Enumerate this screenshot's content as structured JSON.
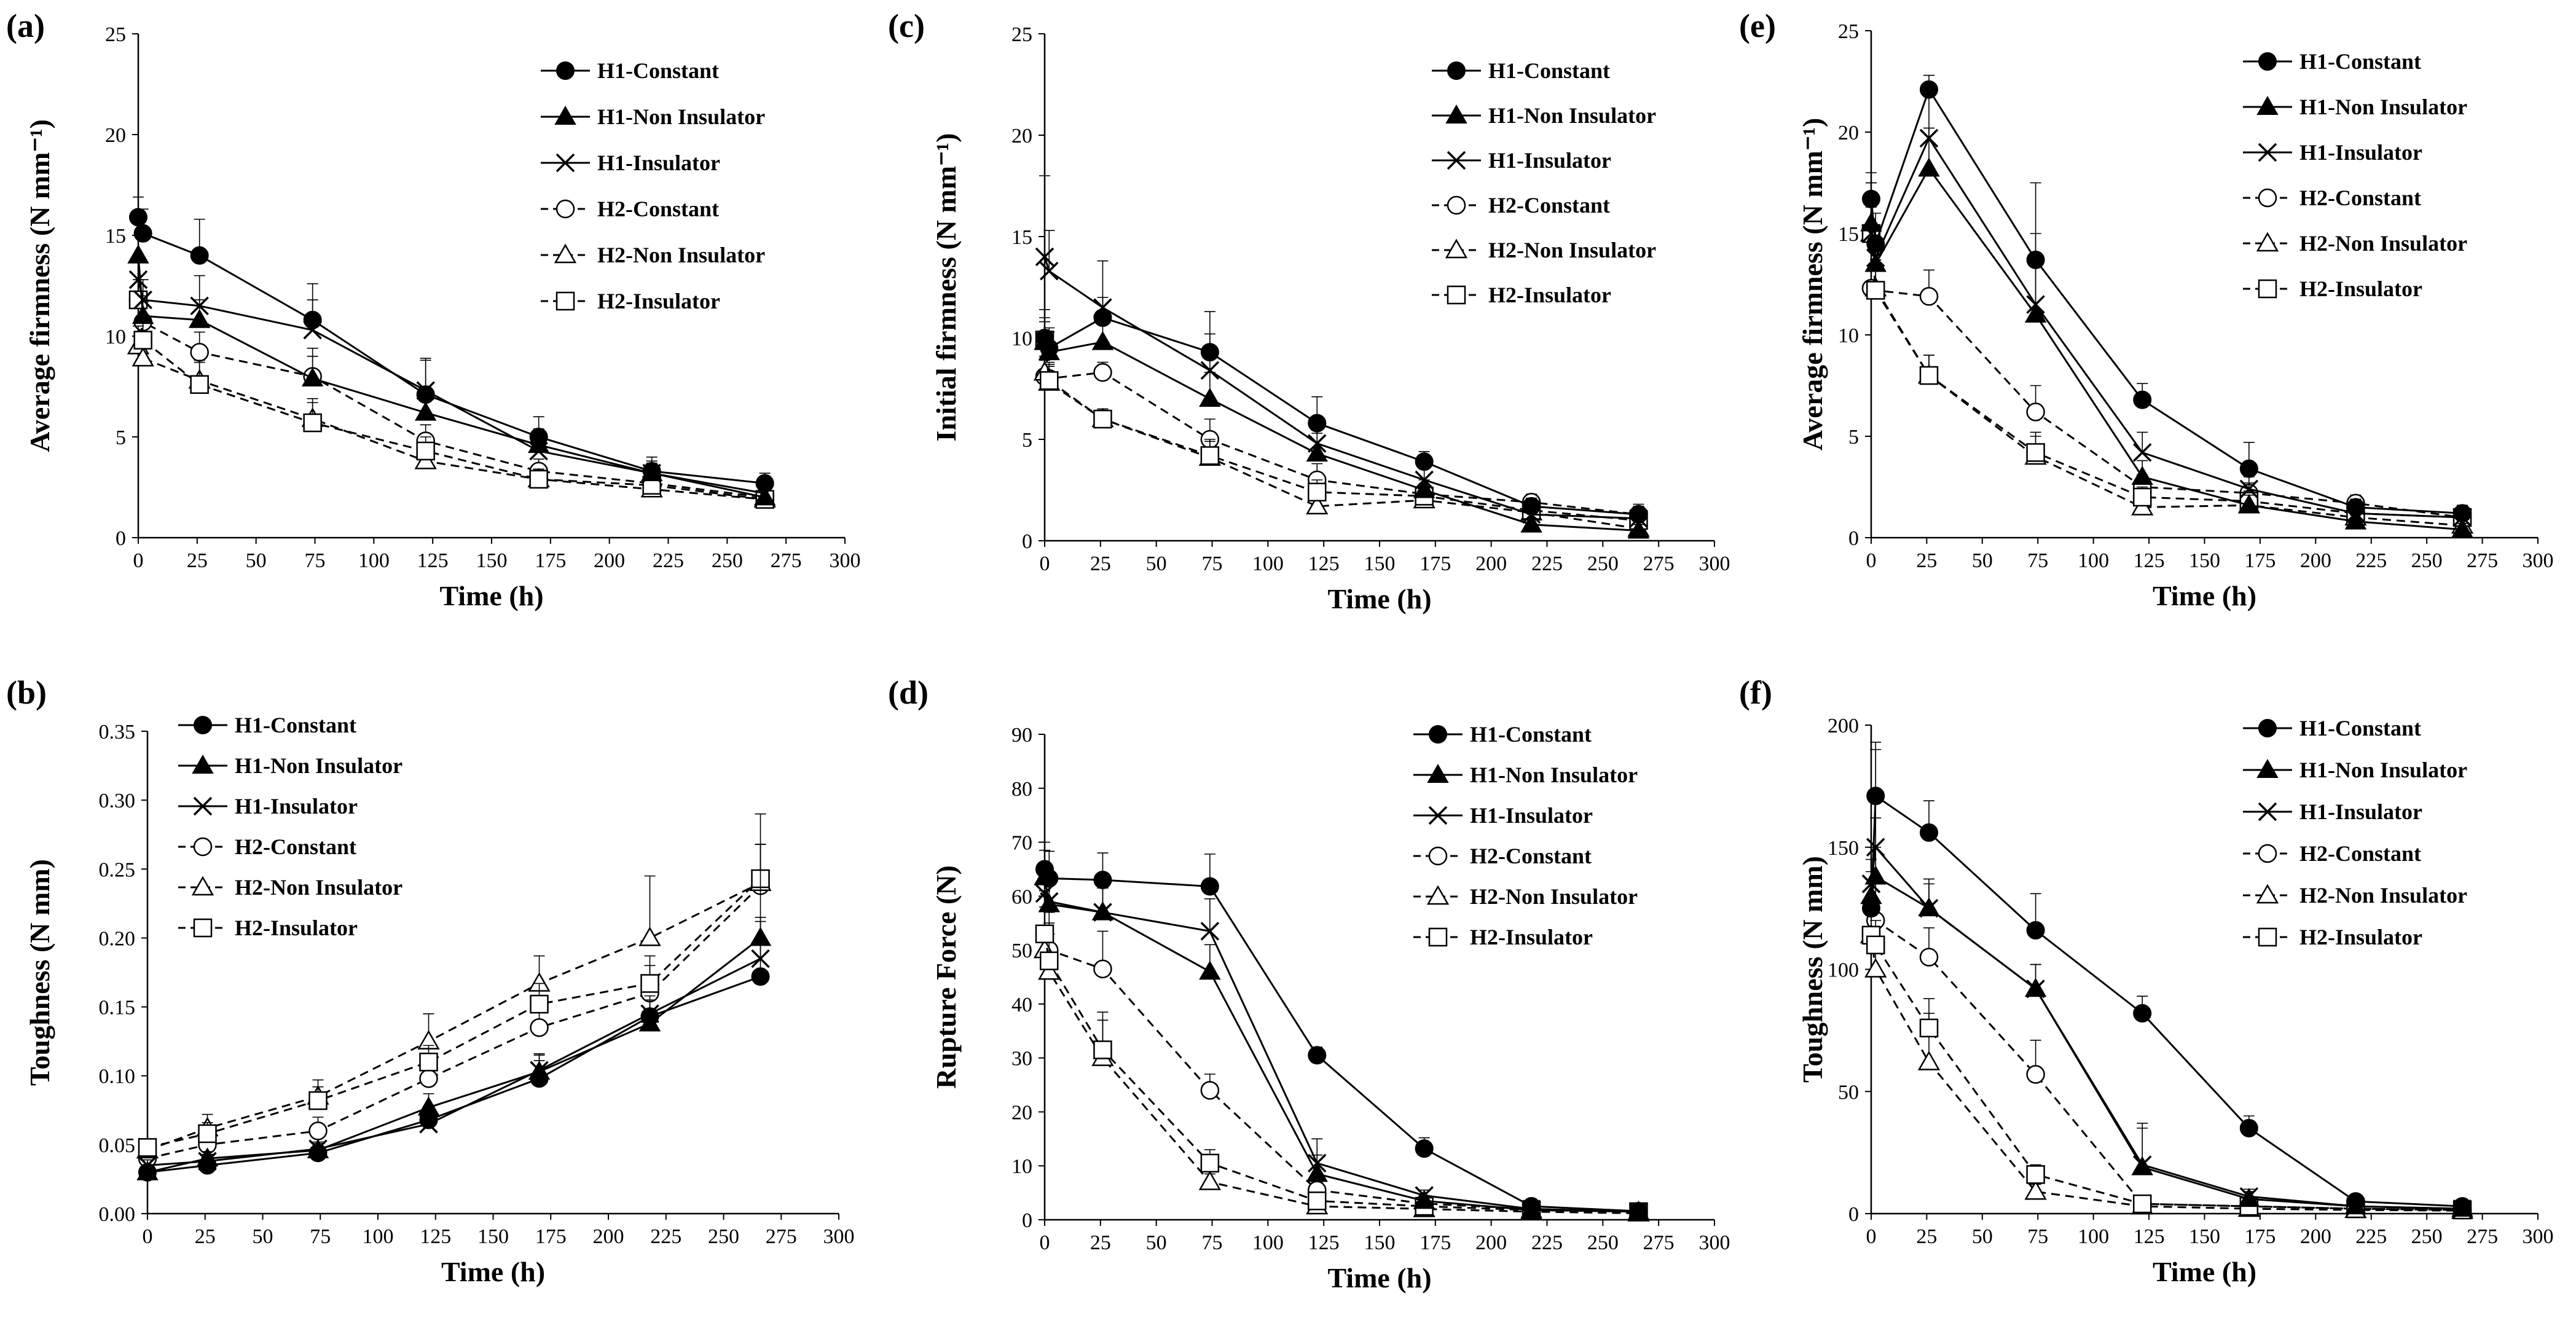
{
  "series_styles": [
    {
      "name": "H1-Constant",
      "marker": "circle-filled",
      "dash": "solid"
    },
    {
      "name": "H1-Non Insulator",
      "marker": "triangle-filled",
      "dash": "solid"
    },
    {
      "name": "H1-Insulator",
      "marker": "cross",
      "dash": "solid"
    },
    {
      "name": "H2-Constant",
      "marker": "circle-open",
      "dash": "dashed"
    },
    {
      "name": "H2-Non Insulator",
      "marker": "triangle-open",
      "dash": "dashed"
    },
    {
      "name": "H2-Insulator",
      "marker": "square-open",
      "dash": "dashed"
    }
  ],
  "chart_data": [
    {
      "panel": "(a)",
      "type": "line",
      "xlabel": "Time (h)",
      "ylabel": "Average firmness (N mm⁻¹)",
      "xlim": [
        0,
        300
      ],
      "ylim": [
        0,
        25
      ],
      "xticks": [
        "0",
        "25",
        "50",
        "75",
        "100",
        "125",
        "150",
        "175",
        "200",
        "225",
        "250",
        "275",
        "300"
      ],
      "yticks": [
        "0",
        "5",
        "10",
        "15",
        "20",
        "25"
      ],
      "legend": [
        "H1-Constant",
        "H1-Non Insulator",
        "H1-Insulator",
        "H2-Constant",
        "H2-Non Insulator",
        "H2-Insulator"
      ],
      "x": [
        0,
        2,
        26,
        74,
        122,
        170,
        218,
        266
      ],
      "series": [
        {
          "name": "H1-Constant",
          "values": [
            15.9,
            15.1,
            14.0,
            10.8,
            7.1,
            5.0,
            3.3,
            2.7
          ],
          "err": [
            1.0,
            1.2,
            1.8,
            1.8,
            1.8,
            1.0,
            0.7,
            0.5
          ]
        },
        {
          "name": "H1-Non Insulator",
          "values": [
            14.0,
            11.0,
            10.8,
            7.9,
            6.2,
            4.6,
            3.2,
            2.0
          ],
          "err": [
            1.0,
            1.0,
            1.0,
            1.5,
            1.3,
            0.8,
            0.6,
            0.4
          ]
        },
        {
          "name": "H1-Insulator",
          "values": [
            12.8,
            11.8,
            11.5,
            10.3,
            7.3,
            4.3,
            3.2,
            2.2
          ],
          "err": [
            1.0,
            1.0,
            1.5,
            1.5,
            1.5,
            0.8,
            0.5,
            0.4
          ]
        },
        {
          "name": "H2-Constant",
          "values": [
            11.8,
            10.7,
            9.2,
            8.0,
            4.8,
            3.3,
            2.7,
            2.0
          ],
          "err": [
            1.0,
            1.0,
            1.0,
            1.0,
            0.8,
            0.6,
            0.5,
            0.3
          ]
        },
        {
          "name": "H2-Non Insulator",
          "values": [
            9.5,
            8.9,
            7.8,
            5.9,
            3.8,
            2.9,
            2.4,
            1.9
          ],
          "err": [
            1.0,
            0.9,
            1.0,
            1.0,
            0.7,
            0.5,
            0.4,
            0.3
          ]
        },
        {
          "name": "H2-Insulator",
          "values": [
            11.8,
            9.8,
            7.6,
            5.7,
            4.3,
            2.9,
            2.6,
            1.9
          ],
          "err": [
            1.0,
            1.0,
            1.1,
            1.0,
            0.7,
            0.5,
            0.5,
            0.3
          ]
        }
      ]
    },
    {
      "panel": "(b)",
      "type": "line",
      "xlabel": "Time (h)",
      "ylabel": "Toughness (N mm)",
      "xlim": [
        0,
        300
      ],
      "ylim": [
        0,
        0.35
      ],
      "xticks": [
        "0",
        "25",
        "50",
        "75",
        "100",
        "125",
        "150",
        "175",
        "200",
        "225",
        "250",
        "275",
        "300"
      ],
      "yticks": [
        "0.00",
        "0.05",
        "0.10",
        "0.15",
        "0.20",
        "0.25",
        "0.30",
        "0.35"
      ],
      "legend": [
        "H1-Constant",
        "H1-Non Insulator",
        "H1-Insulator",
        "H2-Constant",
        "H2-Non Insulator",
        "H2-Insulator"
      ],
      "x": [
        0,
        26,
        74,
        122,
        170,
        218,
        266
      ],
      "series": [
        {
          "name": "H1-Constant",
          "values": [
            0.03,
            0.035,
            0.044,
            0.068,
            0.098,
            0.143,
            0.172
          ],
          "err": [
            0.004,
            0.005,
            0.005,
            0.01,
            0.013,
            0.015,
            0.04
          ]
        },
        {
          "name": "H1-Non Insulator",
          "values": [
            0.03,
            0.04,
            0.046,
            0.077,
            0.103,
            0.138,
            0.2
          ],
          "err": [
            0.004,
            0.005,
            0.005,
            0.01,
            0.012,
            0.01,
            0.068
          ]
        },
        {
          "name": "H1-Insulator",
          "values": [
            0.035,
            0.038,
            0.047,
            0.065,
            0.104,
            0.145,
            0.185
          ],
          "err": [
            0.004,
            0.005,
            0.005,
            0.01,
            0.012,
            0.01,
            0.03
          ]
        },
        {
          "name": "H2-Constant",
          "values": [
            0.04,
            0.05,
            0.06,
            0.098,
            0.135,
            0.16,
            0.238
          ],
          "err": [
            0.006,
            0.008,
            0.01,
            0.012,
            0.015,
            0.02,
            0.03
          ]
        },
        {
          "name": "H2-Non Insulator",
          "values": [
            0.046,
            0.062,
            0.085,
            0.125,
            0.167,
            0.2,
            0.24
          ],
          "err": [
            0.005,
            0.01,
            0.012,
            0.02,
            0.02,
            0.045,
            0.05
          ]
        },
        {
          "name": "H2-Insulator",
          "values": [
            0.048,
            0.058,
            0.082,
            0.11,
            0.152,
            0.167,
            0.243
          ],
          "err": [
            0.006,
            0.008,
            0.01,
            0.012,
            0.015,
            0.02,
            0.025
          ]
        }
      ]
    },
    {
      "panel": "(c)",
      "type": "line",
      "xlabel": "Time (h)",
      "ylabel": "Initial firmness (N mm⁻¹)",
      "xlim": [
        0,
        300
      ],
      "ylim": [
        0,
        25
      ],
      "xticks": [
        "0",
        "25",
        "50",
        "75",
        "100",
        "125",
        "150",
        "175",
        "200",
        "225",
        "250",
        "275",
        "300"
      ],
      "yticks": [
        "0",
        "5",
        "10",
        "15",
        "20",
        "25"
      ],
      "legend": [
        "H1-Constant",
        "H1-Non Insulator",
        "H1-Insulator",
        "H2-Constant",
        "H2-Non Insulator",
        "H2-Insulator"
      ],
      "x": [
        0,
        2,
        26,
        74,
        122,
        170,
        218,
        266
      ],
      "series": [
        {
          "name": "H1-Constant",
          "values": [
            10.0,
            9.5,
            11.0,
            9.3,
            5.8,
            3.9,
            1.7,
            1.3
          ],
          "err": [
            1.0,
            1.0,
            1.0,
            2.0,
            1.3,
            0.5,
            0.4,
            0.5
          ]
        },
        {
          "name": "H1-Non Insulator",
          "values": [
            9.8,
            9.3,
            9.8,
            7.0,
            4.3,
            2.5,
            0.8,
            0.5
          ],
          "err": [
            1.0,
            1.0,
            1.0,
            1.3,
            1.0,
            0.5,
            0.3,
            0.3
          ]
        },
        {
          "name": "H1-Insulator",
          "values": [
            14.0,
            13.3,
            11.5,
            8.4,
            4.8,
            3.0,
            1.3,
            1.1
          ],
          "err": [
            4.0,
            2.0,
            2.3,
            1.8,
            1.0,
            0.6,
            0.4,
            0.4
          ]
        },
        {
          "name": "H2-Constant",
          "values": [
            8.1,
            8.0,
            8.3,
            5.0,
            3.0,
            2.3,
            1.9,
            1.3
          ],
          "err": [
            0.8,
            0.8,
            0.5,
            1.0,
            0.8,
            0.5,
            0.4,
            0.4
          ]
        },
        {
          "name": "H2-Non Insulator",
          "values": [
            8.3,
            7.8,
            6.0,
            4.1,
            1.7,
            2.0,
            1.4,
            0.6
          ],
          "err": [
            0.8,
            0.8,
            0.5,
            0.8,
            0.5,
            0.5,
            0.3,
            0.3
          ]
        },
        {
          "name": "H2-Insulator",
          "values": [
            9.9,
            7.9,
            6.0,
            4.2,
            2.4,
            2.2,
            1.5,
            1.0
          ],
          "err": [
            1.5,
            0.8,
            0.5,
            0.8,
            0.6,
            0.5,
            0.4,
            0.4
          ]
        }
      ]
    },
    {
      "panel": "(d)",
      "type": "line",
      "xlabel": "Time (h)",
      "ylabel": "Rupture Force (N)",
      "xlim": [
        0,
        300
      ],
      "ylim": [
        0,
        90
      ],
      "xticks": [
        "0",
        "25",
        "50",
        "75",
        "100",
        "125",
        "150",
        "175",
        "200",
        "225",
        "250",
        "275",
        "300"
      ],
      "yticks": [
        "0",
        "10",
        "20",
        "30",
        "40",
        "50",
        "60",
        "70",
        "80",
        "90"
      ],
      "legend": [
        "H1-Constant",
        "H1-Non Insulator",
        "H1-Insulator",
        "H2-Constant",
        "H2-Non Insulator",
        "H2-Insulator"
      ],
      "x": [
        0,
        2,
        26,
        74,
        122,
        170,
        218,
        266
      ],
      "series": [
        {
          "name": "H1-Constant",
          "values": [
            65.0,
            63.3,
            63.0,
            61.8,
            30.5,
            13.2,
            2.5,
            1.6
          ],
          "err": [
            5.0,
            5.0,
            5.0,
            6.0,
            1.5,
            2.0,
            0.5,
            0.5
          ]
        },
        {
          "name": "H1-Non Insulator",
          "values": [
            63.5,
            58.5,
            57.0,
            46.0,
            8.5,
            3.5,
            1.8,
            1.5
          ],
          "err": [
            5.0,
            4.5,
            4.5,
            5.0,
            3.5,
            1.0,
            0.5,
            0.4
          ]
        },
        {
          "name": "H1-Insulator",
          "values": [
            60.5,
            59.0,
            57.0,
            53.5,
            10.5,
            4.5,
            2.0,
            1.5
          ],
          "err": [
            5.0,
            4.5,
            5.0,
            6.0,
            4.5,
            1.0,
            0.5,
            0.4
          ]
        },
        {
          "name": "H2-Constant",
          "values": [
            53.0,
            50.0,
            46.5,
            24.0,
            5.5,
            3.0,
            2.0,
            1.5
          ],
          "err": [
            8.0,
            7.0,
            7.0,
            3.0,
            1.5,
            0.8,
            0.5,
            0.4
          ]
        },
        {
          "name": "H2-Non Insulator",
          "values": [
            50.0,
            46.0,
            30.0,
            7.0,
            2.5,
            2.0,
            1.5,
            1.2
          ],
          "err": [
            8.0,
            7.0,
            7.0,
            1.5,
            0.8,
            0.5,
            0.4,
            0.3
          ]
        },
        {
          "name": "H2-Insulator",
          "values": [
            53.0,
            48.0,
            31.5,
            10.5,
            3.5,
            2.5,
            1.8,
            1.5
          ],
          "err": [
            8.0,
            7.0,
            7.0,
            2.5,
            1.0,
            0.6,
            0.4,
            0.3
          ]
        }
      ]
    },
    {
      "panel": "(e)",
      "type": "line",
      "xlabel": "Time (h)",
      "ylabel": "Average firmness (N mm⁻¹)",
      "xlim": [
        0,
        300
      ],
      "ylim": [
        0,
        25
      ],
      "xticks": [
        "0",
        "25",
        "50",
        "75",
        "100",
        "125",
        "150",
        "175",
        "200",
        "225",
        "250",
        "275",
        "300"
      ],
      "yticks": [
        "0",
        "5",
        "10",
        "15",
        "20",
        "25"
      ],
      "legend": [
        "H1-Constant",
        "H1-Non Insulator",
        "H1-Insulator",
        "H2-Constant",
        "H2-Non Insulator",
        "H2-Insulator"
      ],
      "x": [
        0,
        2,
        26,
        74,
        122,
        170,
        218,
        266
      ],
      "series": [
        {
          "name": "H1-Constant",
          "values": [
            16.7,
            14.5,
            22.1,
            13.7,
            6.8,
            3.4,
            1.5,
            1.2
          ],
          "err": [
            1.3,
            1.5,
            0.7,
            3.8,
            0.8,
            1.3,
            0.4,
            0.4
          ]
        },
        {
          "name": "H1-Non Insulator",
          "values": [
            15.5,
            13.5,
            18.2,
            11.0,
            3.0,
            1.6,
            0.8,
            0.4
          ],
          "err": [
            1.3,
            1.3,
            2.0,
            3.0,
            0.8,
            0.5,
            0.3,
            0.3
          ]
        },
        {
          "name": "H1-Insulator",
          "values": [
            15.0,
            13.8,
            19.7,
            11.5,
            4.2,
            2.4,
            1.2,
            1.0
          ],
          "err": [
            1.3,
            1.3,
            2.3,
            3.5,
            1.0,
            0.6,
            0.4,
            0.4
          ]
        },
        {
          "name": "H2-Constant",
          "values": [
            12.3,
            12.2,
            11.9,
            6.2,
            2.5,
            2.2,
            1.7,
            1.0
          ],
          "err": [
            2.5,
            1.5,
            1.3,
            1.3,
            0.6,
            0.5,
            0.4,
            0.3
          ]
        },
        {
          "name": "H2-Non Insulator",
          "values": [
            15.0,
            12.3,
            8.0,
            4.0,
            1.5,
            1.6,
            1.0,
            0.6
          ],
          "err": [
            2.5,
            2.0,
            1.0,
            1.0,
            0.5,
            0.4,
            0.3,
            0.3
          ]
        },
        {
          "name": "H2-Insulator",
          "values": [
            15.0,
            12.2,
            8.0,
            4.2,
            2.0,
            1.8,
            1.2,
            1.0
          ],
          "err": [
            2.5,
            1.5,
            1.0,
            1.0,
            0.5,
            0.5,
            0.4,
            0.3
          ]
        }
      ]
    },
    {
      "panel": "(f)",
      "type": "line",
      "xlabel": "Time (h)",
      "ylabel": "Toughness (N mm)",
      "xlim": [
        0,
        300
      ],
      "ylim": [
        0,
        200
      ],
      "xticks": [
        "0",
        "25",
        "50",
        "75",
        "100",
        "125",
        "150",
        "175",
        "200",
        "225",
        "250",
        "275",
        "300"
      ],
      "yticks": [
        "0",
        "50",
        "100",
        "150",
        "200"
      ],
      "legend": [
        "H1-Constant",
        "H1-Non Insulator",
        "H1-Insulator",
        "H2-Constant",
        "H2-Non Insulator",
        "H2-Insulator"
      ],
      "x": [
        0,
        2,
        26,
        74,
        122,
        170,
        218,
        266
      ],
      "series": [
        {
          "name": "H1-Constant",
          "values": [
            125,
            171,
            156,
            116,
            82,
            35,
            5,
            3
          ],
          "err": [
            10,
            22,
            13,
            15,
            7,
            5,
            1.5,
            1.0
          ]
        },
        {
          "name": "H1-Non Insulator",
          "values": [
            130,
            138,
            125,
            92,
            19,
            6,
            3,
            2
          ],
          "err": [
            10,
            12,
            10,
            10,
            18,
            3,
            1.0,
            1.0
          ]
        },
        {
          "name": "H1-Insulator",
          "values": [
            135,
            150,
            125,
            92,
            20,
            7,
            3,
            2
          ],
          "err": [
            10,
            12,
            12,
            10,
            15,
            3,
            1.0,
            1.0
          ]
        },
        {
          "name": "H2-Constant",
          "values": [
            114,
            120,
            105,
            57,
            4,
            3,
            2,
            1.5
          ],
          "err": [
            10,
            70,
            12,
            14,
            2,
            1.0,
            0.8,
            0.5
          ]
        },
        {
          "name": "H2-Non Insulator",
          "values": [
            114,
            100,
            62,
            9,
            3,
            2,
            1.5,
            1.2
          ],
          "err": [
            8,
            10,
            20,
            3,
            1.0,
            0.8,
            0.5,
            0.4
          ]
        },
        {
          "name": "H2-Insulator",
          "values": [
            114,
            110,
            76,
            16,
            4,
            3,
            2,
            1.5
          ],
          "err": [
            8,
            10,
            12,
            4,
            1.0,
            0.8,
            0.5,
            0.4
          ]
        }
      ]
    }
  ]
}
